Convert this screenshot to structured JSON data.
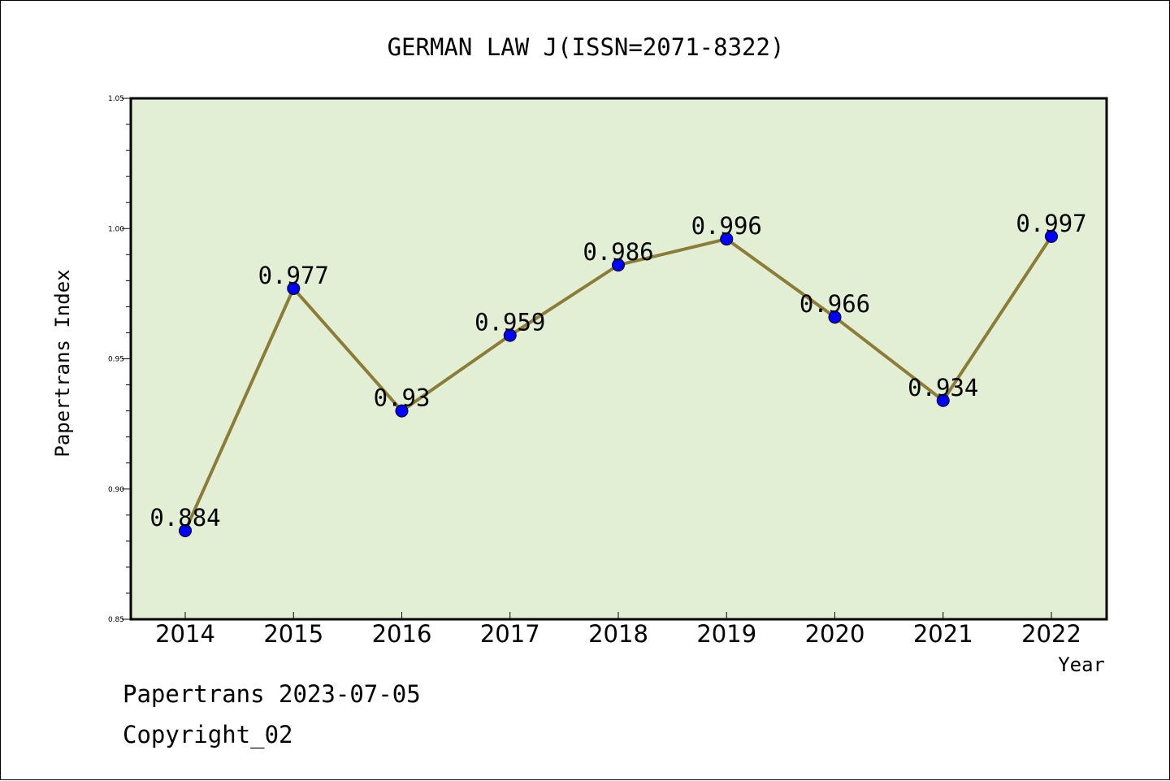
{
  "chart_data": {
    "type": "line",
    "title": "GERMAN LAW J(ISSN=2071-8322)",
    "xlabel": "Year",
    "ylabel": "Papertrans Index",
    "categories": [
      "2014",
      "2015",
      "2016",
      "2017",
      "2018",
      "2019",
      "2020",
      "2021",
      "2022"
    ],
    "series": [
      {
        "values": [
          0.884,
          0.977,
          0.93,
          0.959,
          0.986,
          0.996,
          0.966,
          0.934,
          0.997
        ],
        "data_labels": [
          "0.884",
          "0.977",
          "0.93",
          "0.959",
          "0.986",
          "0.996",
          "0.966",
          "0.934",
          "0.997"
        ]
      }
    ],
    "ylim": [
      0.85,
      1.05
    ],
    "yticks": [
      0.85,
      0.9,
      0.95,
      1.0,
      1.05
    ],
    "ytick_labels": [
      "0.85",
      "0.90",
      "0.95",
      "1.00",
      "1.05"
    ],
    "grid": false,
    "legend": "none"
  },
  "colors": {
    "plot_background": "#e2efd4",
    "line": "#8b7d37",
    "marker": "#0000ff"
  },
  "footer": {
    "line1": "Papertrans 2023-07-05",
    "line2": "Copyright_02"
  }
}
